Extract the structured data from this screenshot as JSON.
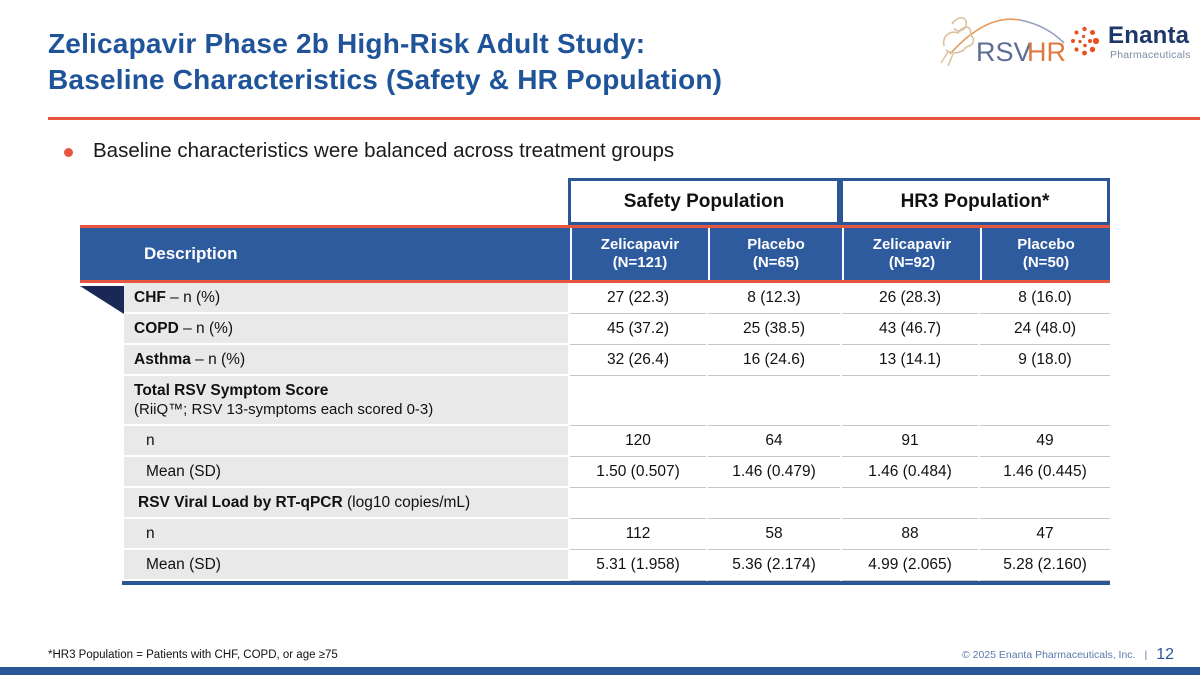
{
  "slide": {
    "title_line1": "Zelicapavir Phase 2b High-Risk Adult Study:",
    "title_line2": "Baseline Characteristics (Safety & HR Population)",
    "bullet": "Baseline characteristics were balanced across treatment groups",
    "footnote": "*HR3 Population = Patients with CHF, COPD, or age ≥75",
    "footer_copyright": "© 2025  Enanta Pharmaceuticals, Inc.",
    "footer_separator": "|",
    "page_number": "12"
  },
  "logos": {
    "rsvhr": {
      "rsv": "RSV",
      "hr": "HR"
    },
    "enanta": {
      "name": "Enanta",
      "subtitle": "Pharmaceuticals"
    }
  },
  "table": {
    "group_headers": [
      {
        "label": "Safety Population"
      },
      {
        "label": "HR3 Population*"
      }
    ],
    "description_header": "Description",
    "column_headers": [
      {
        "drug": "Zelicapavir",
        "n": "(N=121)"
      },
      {
        "drug": "Placebo",
        "n": "(N=65)"
      },
      {
        "drug": "Zelicapavir",
        "n": "(N=92)"
      },
      {
        "drug": "Placebo",
        "n": "(N=50)"
      }
    ],
    "rows": [
      {
        "label_bold": "CHF",
        "label_rest": " – n (%)",
        "indent": "main",
        "tall": false,
        "values": [
          "27 (22.3)",
          "8 (12.3)",
          "26 (28.3)",
          "8 (16.0)"
        ]
      },
      {
        "label_bold": "COPD",
        "label_rest": " – n (%)",
        "indent": "main",
        "tall": false,
        "values": [
          "45 (37.2)",
          "25 (38.5)",
          "43 (46.7)",
          "24 (48.0)"
        ]
      },
      {
        "label_bold": "Asthma",
        "label_rest": " – n (%)",
        "indent": "main",
        "tall": false,
        "values": [
          "32 (26.4)",
          "16 (24.6)",
          "13 (14.1)",
          "9 (18.0)"
        ]
      },
      {
        "label_bold": "Total RSV Symptom Score",
        "label_rest": "",
        "label_line2": "(RiiQ™; RSV 13-symptoms each scored 0-3)",
        "indent": "main",
        "tall": true,
        "values": [
          "",
          "",
          "",
          ""
        ]
      },
      {
        "label_bold": "",
        "label_rest": "n",
        "indent": "sub",
        "tall": false,
        "values": [
          "120",
          "64",
          "91",
          "49"
        ]
      },
      {
        "label_bold": "",
        "label_rest": "Mean (SD)",
        "indent": "sub",
        "tall": false,
        "values": [
          "1.50 (0.507)",
          "1.46 (0.479)",
          "1.46 (0.484)",
          "1.46 (0.445)"
        ]
      },
      {
        "label_bold": "RSV Viral Load by RT-qPCR",
        "label_rest": " (log10 copies/mL)",
        "indent": "slight",
        "tall": false,
        "values": [
          "",
          "",
          "",
          ""
        ]
      },
      {
        "label_bold": "",
        "label_rest": "n",
        "indent": "sub",
        "tall": false,
        "values": [
          "112",
          "58",
          "88",
          "47"
        ]
      },
      {
        "label_bold": "",
        "label_rest": "Mean (SD)",
        "indent": "sub",
        "tall": false,
        "values": [
          "5.31 (1.958)",
          "5.36 (2.174)",
          "4.99 (2.065)",
          "5.28 (2.160)"
        ]
      }
    ]
  },
  "colors": {
    "title_blue": "#1F5499",
    "header_blue": "#2E5A9E",
    "accent_red": "#E65540",
    "navy_fold": "#1A2857",
    "bar_blue": "#2B5797",
    "cell_gray": "#E9E9E9",
    "enanta_orange": "#E8501F",
    "rsv_slate": "#5E6E92",
    "hr_orange": "#E0793F"
  }
}
